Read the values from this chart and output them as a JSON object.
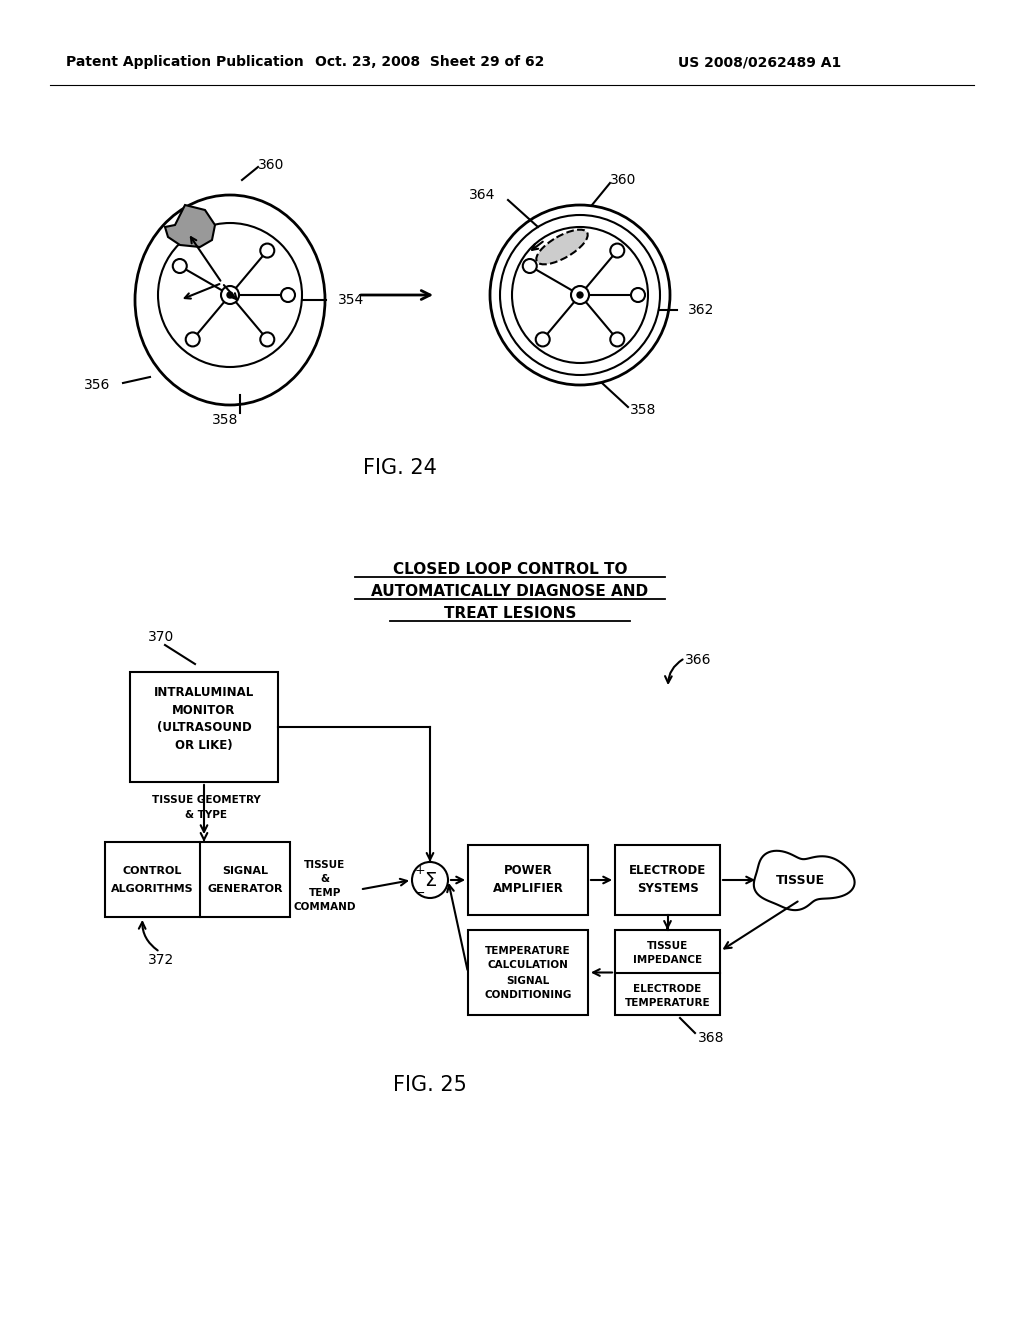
{
  "bg_color": "#ffffff",
  "header_left": "Patent Application Publication",
  "header_mid": "Oct. 23, 2008  Sheet 29 of 62",
  "header_right": "US 2008/0262489 A1",
  "fig24_caption": "FIG. 24",
  "fig25_caption": "FIG. 25",
  "title_line1": "CLOSED LOOP CONTROL TO",
  "title_line2": "AUTOMATICALLY DIAGNOSE AND",
  "title_line3": "TREAT LESIONS"
}
